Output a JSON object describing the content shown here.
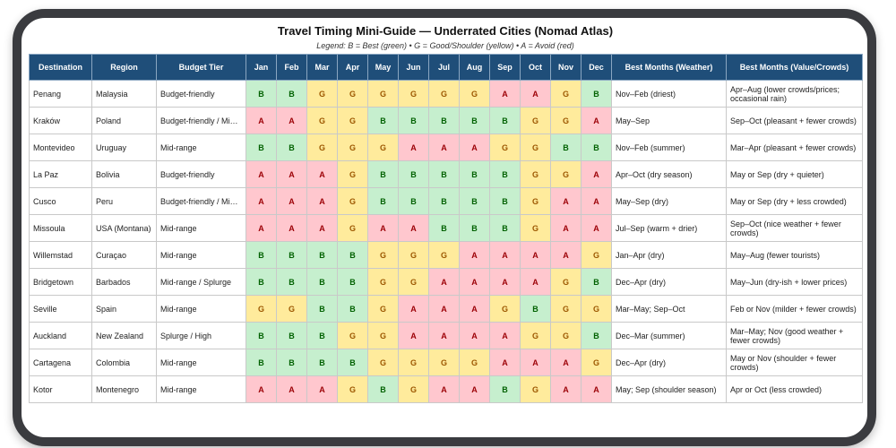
{
  "header": {
    "title": "Travel Timing Mini-Guide — Underrated Cities (Nomad Atlas)",
    "legend": "Legend: B = Best (green) • G = Good/Shoulder (yellow) • A = Avoid (red)"
  },
  "cell_colors": {
    "B": {
      "fill": "#c6efce",
      "text": "#006100"
    },
    "G": {
      "fill": "#ffeb9c",
      "text": "#9c5700"
    },
    "A": {
      "fill": "#ffc7ce",
      "text": "#9c0006"
    }
  },
  "table": {
    "columns": [
      "Destination",
      "Region",
      "Budget Tier",
      "Jan",
      "Feb",
      "Mar",
      "Apr",
      "May",
      "Jun",
      "Jul",
      "Aug",
      "Sep",
      "Oct",
      "Nov",
      "Dec",
      "Best Months (Weather)",
      "Best Months (Value/Crowds)"
    ],
    "rows": [
      [
        "Penang",
        "Malaysia",
        "Budget-friendly",
        "B",
        "B",
        "G",
        "G",
        "G",
        "G",
        "G",
        "G",
        "A",
        "A",
        "G",
        "B",
        "Nov–Feb (driest)",
        "Apr–Aug (lower crowds/prices; occasional rain)"
      ],
      [
        "Kraków",
        "Poland",
        "Budget-friendly / Mid-range",
        "A",
        "A",
        "G",
        "G",
        "B",
        "B",
        "B",
        "B",
        "B",
        "G",
        "G",
        "A",
        "May–Sep",
        "Sep–Oct (pleasant + fewer crowds)"
      ],
      [
        "Montevideo",
        "Uruguay",
        "Mid-range",
        "B",
        "B",
        "G",
        "G",
        "G",
        "A",
        "A",
        "A",
        "G",
        "G",
        "B",
        "B",
        "Nov–Feb (summer)",
        "Mar–Apr (pleasant + fewer crowds)"
      ],
      [
        "La Paz",
        "Bolivia",
        "Budget-friendly",
        "A",
        "A",
        "A",
        "G",
        "B",
        "B",
        "B",
        "B",
        "B",
        "G",
        "G",
        "A",
        "Apr–Oct (dry season)",
        "May or Sep (dry + quieter)"
      ],
      [
        "Cusco",
        "Peru",
        "Budget-friendly / Mid-range",
        "A",
        "A",
        "A",
        "G",
        "B",
        "B",
        "B",
        "B",
        "B",
        "G",
        "A",
        "A",
        "May–Sep (dry)",
        "May or Sep (dry + less crowded)"
      ],
      [
        "Missoula",
        "USA (Montana)",
        "Mid-range",
        "A",
        "A",
        "A",
        "G",
        "A",
        "A",
        "B",
        "B",
        "B",
        "G",
        "A",
        "A",
        "Jul–Sep (warm + drier)",
        "Sep–Oct (nice weather + fewer crowds)"
      ],
      [
        "Willemstad",
        "Curaçao",
        "Mid-range",
        "B",
        "B",
        "B",
        "B",
        "G",
        "G",
        "G",
        "A",
        "A",
        "A",
        "A",
        "G",
        "Jan–Apr (dry)",
        "May–Aug (fewer tourists)"
      ],
      [
        "Bridgetown",
        "Barbados",
        "Mid-range / Splurge",
        "B",
        "B",
        "B",
        "B",
        "G",
        "G",
        "A",
        "A",
        "A",
        "A",
        "G",
        "B",
        "Dec–Apr (dry)",
        "May–Jun (dry-ish + lower prices)"
      ],
      [
        "Seville",
        "Spain",
        "Mid-range",
        "G",
        "G",
        "B",
        "B",
        "G",
        "A",
        "A",
        "A",
        "G",
        "B",
        "G",
        "G",
        "Mar–May; Sep–Oct",
        "Feb or Nov (milder + fewer crowds)"
      ],
      [
        "Auckland",
        "New Zealand",
        "Splurge / High",
        "B",
        "B",
        "B",
        "G",
        "G",
        "A",
        "A",
        "A",
        "A",
        "G",
        "G",
        "B",
        "Dec–Mar (summer)",
        "Mar–May; Nov (good weather + fewer crowds)"
      ],
      [
        "Cartagena",
        "Colombia",
        "Mid-range",
        "B",
        "B",
        "B",
        "B",
        "G",
        "G",
        "G",
        "G",
        "A",
        "A",
        "A",
        "G",
        "Dec–Apr (dry)",
        "May or Nov (shoulder + fewer crowds)"
      ],
      [
        "Kotor",
        "Montenegro",
        "Mid-range",
        "A",
        "A",
        "A",
        "G",
        "B",
        "G",
        "A",
        "A",
        "B",
        "G",
        "A",
        "A",
        "May; Sep (shoulder season)",
        "Apr or Oct (less crowded)"
      ]
    ]
  }
}
